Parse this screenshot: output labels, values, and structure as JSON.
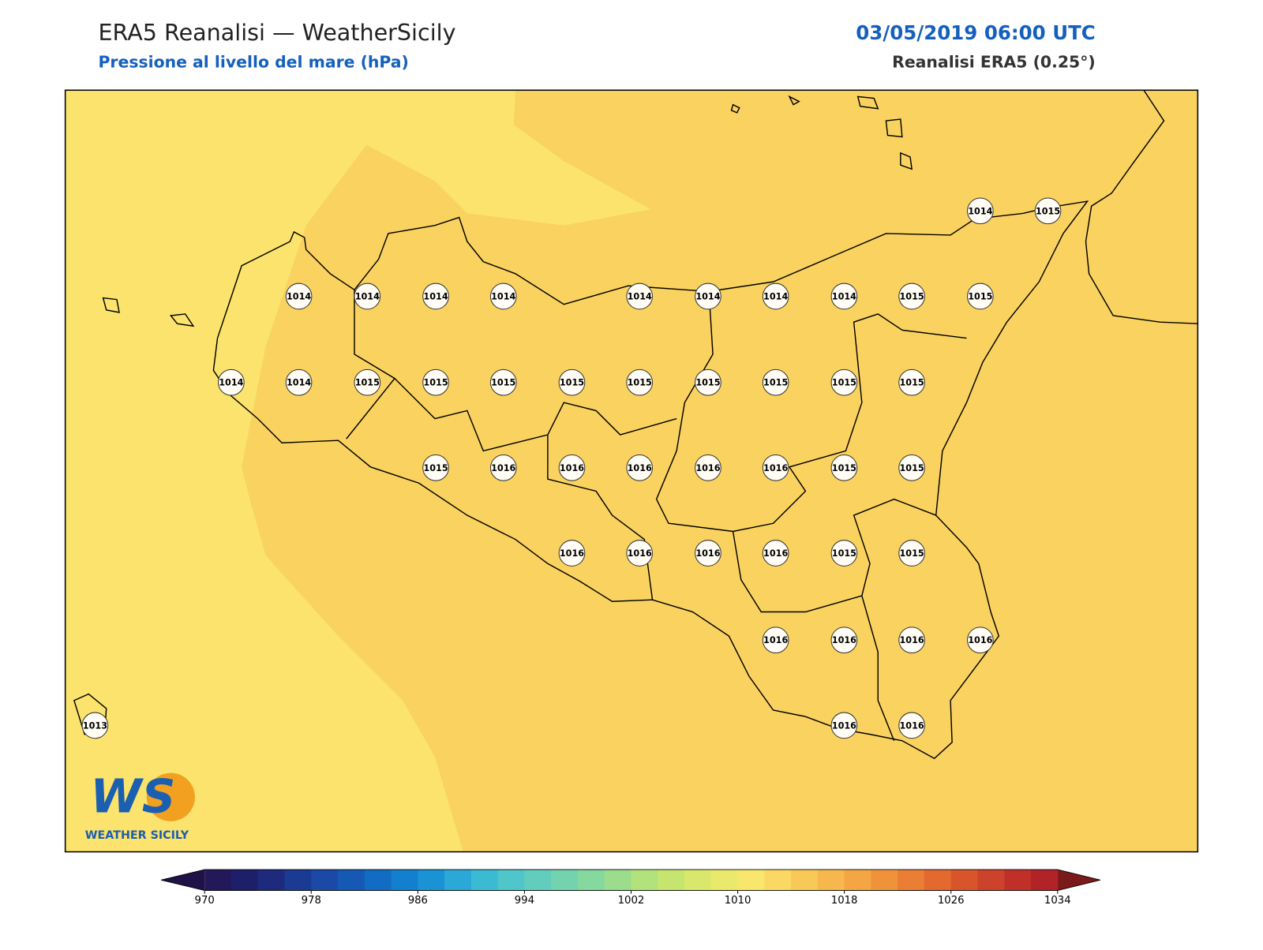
{
  "header": {
    "title": "ERA5 Reanalisi — WeatherSicily",
    "subtitle": "Pressione al livello del mare (hPa)",
    "date": "03/05/2019 06:00 UTC",
    "source": "Reanalisi ERA5 (0.25°)"
  },
  "stations": {
    "values": [
      1014,
      1015,
      1014,
      1014,
      1014,
      1014,
      1014,
      1014,
      1014,
      1014,
      1015,
      1015,
      1014,
      1014,
      1015,
      1015,
      1015,
      1015,
      1015,
      1015,
      1015,
      1015,
      1015,
      1015,
      1016,
      1016,
      1016,
      1016,
      1016,
      1015,
      1015,
      1016,
      1016,
      1016,
      1016,
      1015,
      1015,
      1016,
      1016,
      1016,
      1016,
      1016,
      1016,
      1013
    ]
  },
  "colorbar": {
    "ticks": [
      970,
      978,
      986,
      994,
      1002,
      1010,
      1018,
      1026,
      1034
    ],
    "colors": [
      "#23185a",
      "#1e1f6b",
      "#1d2a7e",
      "#1b3a92",
      "#1a4aa6",
      "#1559b5",
      "#126cc4",
      "#1380cf",
      "#1a93d4",
      "#2aa8d6",
      "#3bbad3",
      "#4ec6ca",
      "#62cdbd",
      "#73d3ae",
      "#85d89e",
      "#9bdd8c",
      "#b1e27b",
      "#c6e56e",
      "#d9e86b",
      "#eae96c",
      "#f8e66d",
      "#fbd863",
      "#f9c957",
      "#f6b84c",
      "#f3a643",
      "#ef933b",
      "#ea7e34",
      "#e3692f",
      "#d8552c",
      "#cd422b",
      "#c03029",
      "#b22327"
    ],
    "under": "#1f1247",
    "over": "#7a1a1a"
  },
  "logo": {
    "mark": "WS",
    "name": "WEATHER SICILY"
  }
}
